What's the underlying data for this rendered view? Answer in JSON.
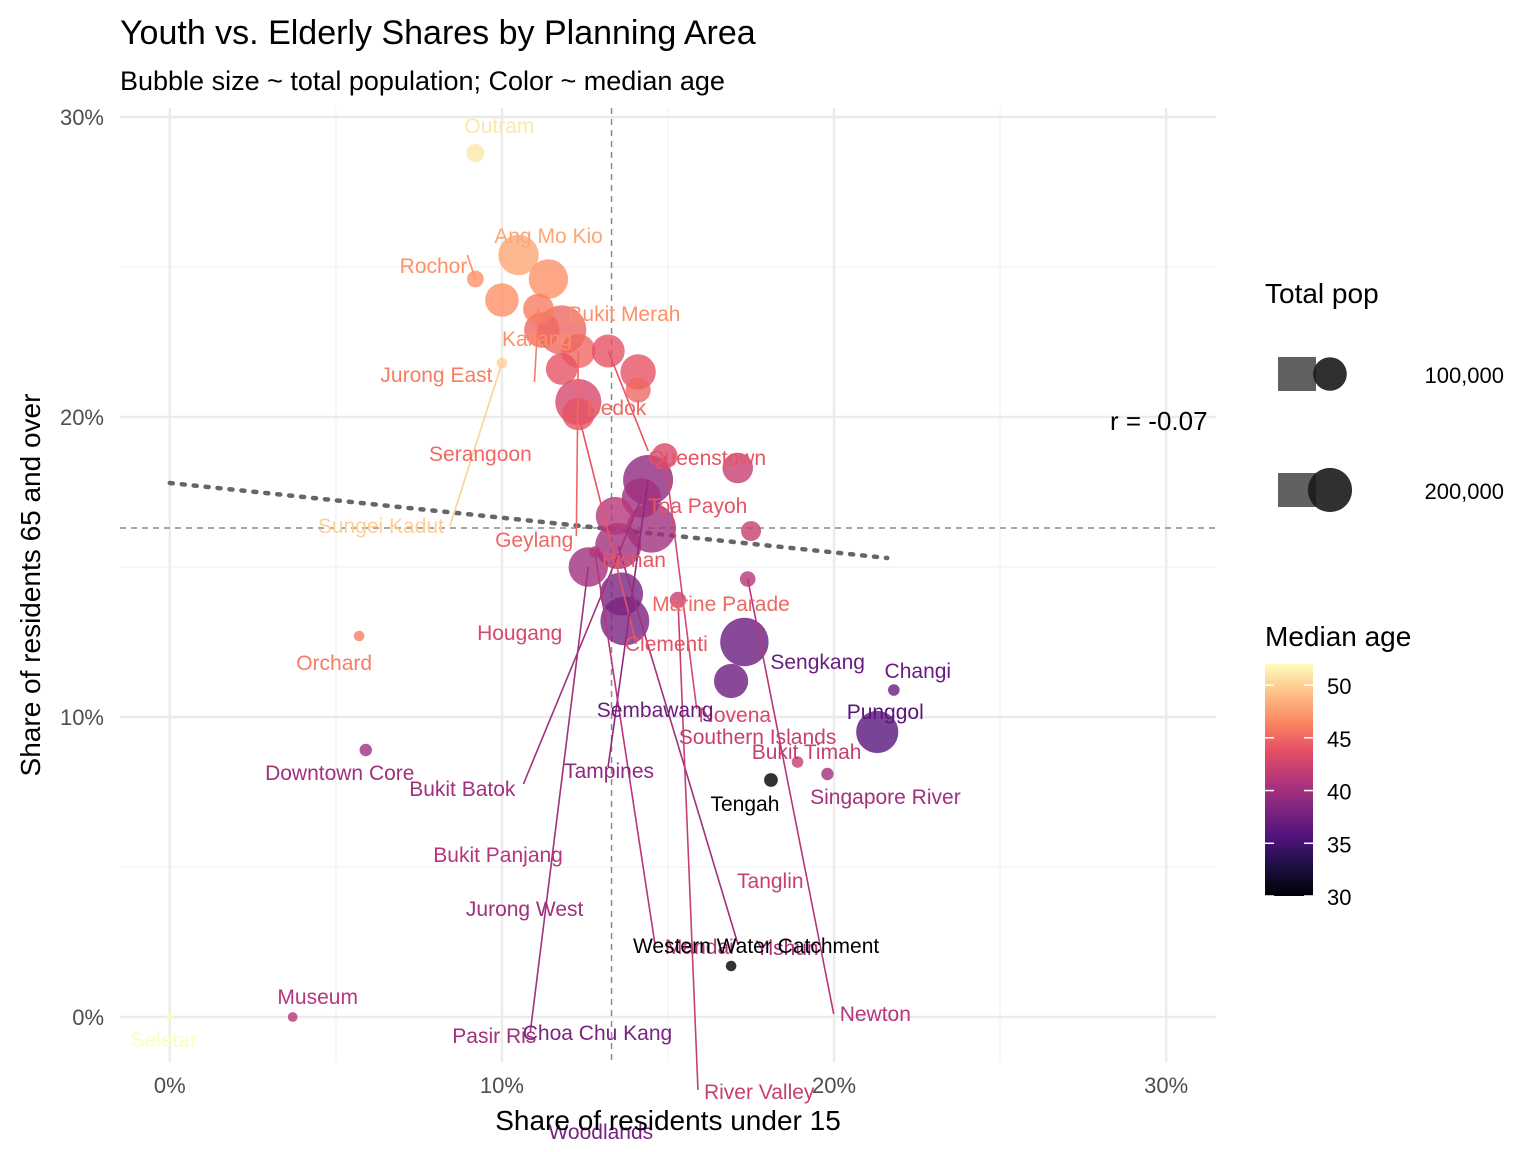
{
  "chart_data": {
    "type": "scatter",
    "title": "Youth vs. Elderly Shares by Planning Area",
    "subtitle": "Bubble size ~ total population; Color ~ median age",
    "xlabel": "Share of residents under 15",
    "ylabel": "Share of residents 65 and over",
    "xlim": [
      -0.015,
      0.315
    ],
    "ylim": [
      -0.015,
      0.303
    ],
    "x_ticks": [
      0,
      0.1,
      0.2,
      0.3
    ],
    "x_tick_labels": [
      "0%",
      "10%",
      "20%",
      "30%"
    ],
    "y_ticks": [
      0,
      0.1,
      0.2,
      0.3
    ],
    "y_tick_labels": [
      "0%",
      "10%",
      "20%",
      "30%"
    ],
    "grid": true,
    "reference_lines": {
      "x_mean": 0.133,
      "y_mean": 0.163
    },
    "trend_line": {
      "x": [
        0.0,
        0.216
      ],
      "y": [
        0.178,
        0.153
      ]
    },
    "annotation": "r = -0.07",
    "size_legend": {
      "title": "Total pop",
      "labels": [
        "100,000",
        "200,000"
      ]
    },
    "color_legend": {
      "title": "Median age",
      "ticks": [
        50,
        45,
        40,
        35,
        30
      ],
      "tick_labels": [
        "50",
        "45",
        "40",
        "35",
        "30"
      ]
    },
    "points": [
      {
        "name": "Outram",
        "x": 0.092,
        "y": 0.288,
        "pop": 16000,
        "age": 51
      },
      {
        "name": "Ang Mo Kio",
        "x": 0.105,
        "y": 0.254,
        "pop": 160000,
        "age": 48
      },
      {
        "name": "Rochor",
        "x": 0.092,
        "y": 0.246,
        "pop": 12000,
        "age": 47
      },
      {
        "name": "Bukit Merah",
        "x": 0.114,
        "y": 0.246,
        "pop": 150000,
        "age": 47
      },
      {
        "name": "Kallang",
        "x": 0.1,
        "y": 0.239,
        "pop": 100000,
        "age": 47
      },
      {
        "name": "Jurong East",
        "x": 0.111,
        "y": 0.236,
        "pop": 78000,
        "age": 46
      },
      {
        "name": "Bedok",
        "x": 0.118,
        "y": 0.229,
        "pop": 260000,
        "age": 45
      },
      {
        "name": "Serangoon",
        "x": 0.112,
        "y": 0.229,
        "pop": 115000,
        "age": 45
      },
      {
        "name": "Geylang",
        "x": 0.123,
        "y": 0.222,
        "pop": 105000,
        "age": 45
      },
      {
        "name": "Queenstown",
        "x": 0.132,
        "y": 0.222,
        "pop": 95000,
        "age": 44
      },
      {
        "name": "Toa Payoh",
        "x": 0.141,
        "y": 0.215,
        "pop": 115000,
        "age": 44
      },
      {
        "name": "Sungei Kadut",
        "x": 0.1,
        "y": 0.218,
        "pop": 1000,
        "age": 50
      },
      {
        "name": "Bishan",
        "x": 0.118,
        "y": 0.216,
        "pop": 85000,
        "age": 44
      },
      {
        "name": "Marine Parade",
        "x": 0.141,
        "y": 0.209,
        "pop": 45000,
        "age": 45
      },
      {
        "name": "Clementi",
        "x": 0.123,
        "y": 0.201,
        "pop": 92000,
        "age": 44
      },
      {
        "name": "Hougang",
        "x": 0.123,
        "y": 0.205,
        "pop": 220000,
        "age": 43
      },
      {
        "name": "Novena",
        "x": 0.149,
        "y": 0.187,
        "pop": 48000,
        "age": 43
      },
      {
        "name": "Bukit Timah",
        "x": 0.171,
        "y": 0.183,
        "pop": 78000,
        "age": 42
      },
      {
        "name": "Tampines",
        "x": 0.144,
        "y": 0.179,
        "pop": 270000,
        "age": 39
      },
      {
        "name": "Bukit Batok",
        "x": 0.142,
        "y": 0.173,
        "pop": 150000,
        "age": 40
      },
      {
        "name": "Bukit Panjang",
        "x": 0.134,
        "y": 0.167,
        "pop": 140000,
        "age": 41
      },
      {
        "name": "Jurong West",
        "x": 0.145,
        "y": 0.163,
        "pop": 260000,
        "age": 40
      },
      {
        "name": "Tanglin",
        "x": 0.175,
        "y": 0.162,
        "pop": 22000,
        "age": 42
      },
      {
        "name": "Mandai",
        "x": 0.128,
        "y": 0.155,
        "pop": 2000,
        "age": 41
      },
      {
        "name": "Yishun",
        "x": 0.135,
        "y": 0.157,
        "pop": 220000,
        "age": 40
      },
      {
        "name": "Pasir Ris",
        "x": 0.126,
        "y": 0.15,
        "pop": 150000,
        "age": 40
      },
      {
        "name": "Newton",
        "x": 0.174,
        "y": 0.146,
        "pop": 9000,
        "age": 41
      },
      {
        "name": "Choa Chu Kang",
        "x": 0.136,
        "y": 0.141,
        "pop": 190000,
        "age": 38
      },
      {
        "name": "River Valley",
        "x": 0.153,
        "y": 0.139,
        "pop": 11000,
        "age": 42
      },
      {
        "name": "Woodlands",
        "x": 0.137,
        "y": 0.132,
        "pop": 255000,
        "age": 38
      },
      {
        "name": "Orchard",
        "x": 0.057,
        "y": 0.127,
        "pop": 1000,
        "age": 46
      },
      {
        "name": "Sengkang",
        "x": 0.173,
        "y": 0.125,
        "pop": 250000,
        "age": 37
      },
      {
        "name": "Sembawang",
        "x": 0.169,
        "y": 0.112,
        "pop": 105000,
        "age": 37
      },
      {
        "name": "Changi",
        "x": 0.218,
        "y": 0.109,
        "pop": 2000,
        "age": 37
      },
      {
        "name": "Punggol",
        "x": 0.213,
        "y": 0.095,
        "pop": 180000,
        "age": 36
      },
      {
        "name": "Downtown Core",
        "x": 0.059,
        "y": 0.089,
        "pop": 3000,
        "age": 40
      },
      {
        "name": "Southern Islands",
        "x": 0.189,
        "y": 0.085,
        "pop": 2000,
        "age": 42
      },
      {
        "name": "Singapore River",
        "x": 0.198,
        "y": 0.081,
        "pop": 3000,
        "age": 40
      },
      {
        "name": "Tengah",
        "x": 0.181,
        "y": 0.079,
        "pop": 5000,
        "age": 30
      },
      {
        "name": "Western Water Catchment",
        "x": 0.169,
        "y": 0.017,
        "pop": 1000,
        "age": 30
      },
      {
        "name": "Museum",
        "x": 0.037,
        "y": 0.0,
        "pop": 500,
        "age": 41
      },
      {
        "name": "Seletar",
        "x": 0.0,
        "y": 0.0,
        "pop": 0,
        "age": 52
      }
    ]
  }
}
